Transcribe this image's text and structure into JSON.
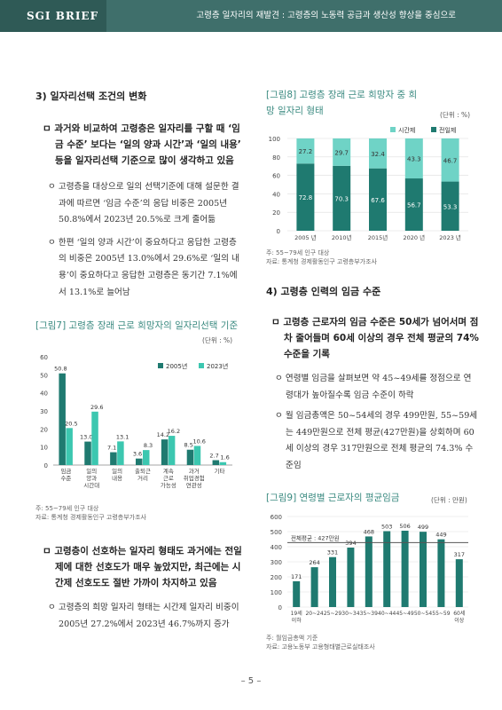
{
  "header": {
    "brand": "SGI BRIEF",
    "title": "고령층 일자리의 재발견 : 고령층의 노동력 공급과 생산성 향상을 중심으로"
  },
  "left": {
    "section3_title": "3) 일자리선택 조건의 변화",
    "bullet1": "ㅁ 과거와 비교하여 고령층은 일자리를 구할 때 ‘임금 수준’ 보다는 ‘일의 양과 시간’과 ‘일의 내용’ 등을 일자리선택 기준으로 많이 생각하고 있음",
    "sub1": "ㅇ 고령층을 대상으로 일의 선택기준에 대해 설문한 결과에 따르면 ‘임금 수준’의 응답 비중은 2005년 50.8%에서 2023년 20.5%로 크게 줄어듦",
    "sub2": "ㅇ 한편 ‘일의 양과 시간’이 중요하다고 응답한 고령층의 비중은 2005년 13.0%에서 29.6%로 ‘일의 내용’이 중요하다고 응답한 고령층은 동기간 7.1%에서 13.1%로 늘어남",
    "fig7_title": "[그림7] 고령층 장래 근로 희망자의 일자리선택 기준",
    "fig7_unit": "(단위 : %)",
    "fig7_note1": "주: 55~79세 인구 대상",
    "fig7_note2": "자료: 통계청 경제활동인구 고령층부가조사",
    "bullet2": "ㅁ 고령층이 선호하는 일자리 형태도 과거에는 전일제에 대한 선호도가 매우 높았지만, 최근에는 시간제 선호도도 절반 가까이 차지하고 있음",
    "sub3": "ㅇ 고령층의 희망 일자리 형태는 시간제 일자리 비중이 2005년 27.2%에서 2023년 46.7%까지 증가"
  },
  "right": {
    "fig8_title": "[그림8] 고령층 장래 근로 희망자 중 희망 일자리 형태",
    "fig8_unit": "(단위 : %)",
    "fig8_note1": "주: 55~79세 인구 대상",
    "fig8_note2": "자료: 통계청 경제활동인구 고령층부가조사",
    "section4_title": "4) 고령층 인력의 임금 수준",
    "bullet3": "ㅁ 고령층 근로자의 임금 수준은 50세가 넘어서며 점차 줄어들며 60세 이상의 경우 전체 평균의 74% 수준을 기록",
    "sub4": "ㅇ 연령별 임금을 살펴보면 약 45~49세를 정점으로 연령대가 높아질수록 임금 수준이 하락",
    "sub5": "ㅇ 월 임금총액은 50~54세의 경우 499만원, 55~59세는 449만원으로 전체 평균(427만원)을 상회하며 60세 이상의 경우 317만원으로 전체 평균의 74.3% 수준임",
    "fig9_title": "[그림9] 연령별 근로자의 평균임금",
    "fig9_unit": "(단위 : 만원)",
    "fig9_note1": "주: 월임금총액 기준",
    "fig9_note2": "자료: 고용노동부 고용형태별근로실태조사"
  },
  "page_number": "– 5 –",
  "colors": {
    "header": "#3f6f6b",
    "teal_dark": "#1f7a70",
    "teal_light": "#3cc7b0",
    "parttime": "#6fd3c6"
  },
  "chart_data": [
    {
      "id": "fig7",
      "type": "bar",
      "categories": [
        "임금\n수준",
        "일의\n양과\n시간대",
        "일의\n내용",
        "출퇴근\n거리",
        "계속\n근로\n가능성",
        "과거\n취업경험\n연관성",
        "기타"
      ],
      "series": [
        {
          "name": "2005년",
          "values": [
            50.8,
            13.0,
            7.1,
            3.6,
            14.2,
            8.5,
            2.7
          ]
        },
        {
          "name": "2023년",
          "values": [
            20.5,
            29.6,
            13.1,
            8.3,
            16.2,
            10.6,
            1.6
          ]
        }
      ],
      "ylim": [
        0,
        60
      ],
      "yticks": [
        0,
        10,
        20,
        30,
        40,
        50,
        60
      ],
      "legend": "top-right",
      "grid": false
    },
    {
      "id": "fig8",
      "type": "bar",
      "stacked": true,
      "categories": [
        "2005 년",
        "2010년",
        "2015년",
        "2020 년",
        "2023 년"
      ],
      "series": [
        {
          "name": "전일제",
          "values": [
            72.8,
            70.3,
            67.6,
            56.7,
            53.3
          ]
        },
        {
          "name": "시간제",
          "values": [
            27.2,
            29.7,
            32.4,
            43.3,
            46.7
          ]
        }
      ],
      "ylim": [
        0,
        100
      ],
      "yticks": [
        0,
        20,
        40,
        60,
        80,
        100
      ],
      "legend": "top-right",
      "grid": true
    },
    {
      "id": "fig9",
      "type": "bar",
      "categories": [
        "19세\n이하",
        "20~24",
        "25~29",
        "30~34",
        "35~39",
        "40~44",
        "45~49",
        "50~54",
        "55~59",
        "60세\n이상"
      ],
      "values": [
        171,
        264,
        331,
        394,
        468,
        503,
        506,
        499,
        449,
        317
      ],
      "average": {
        "label": "전체평균 : 427만원",
        "value": 427
      },
      "ylim": [
        0,
        600
      ],
      "yticks": [
        0,
        100,
        200,
        300,
        400,
        500,
        600
      ],
      "grid": true
    }
  ]
}
